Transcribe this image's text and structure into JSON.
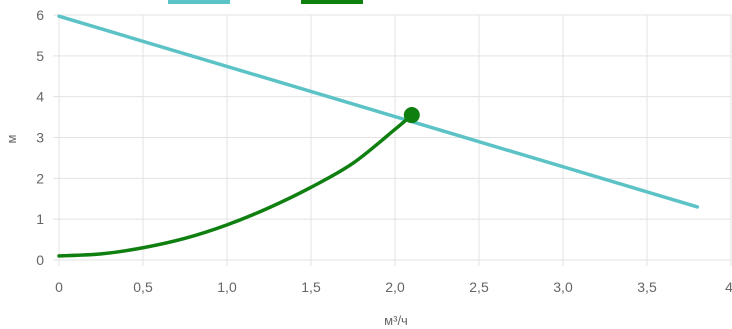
{
  "chart_data": {
    "type": "line",
    "xlabel": "м³/ч",
    "ylabel": "м",
    "xlim": [
      0,
      4
    ],
    "ylim": [
      0,
      6
    ],
    "x_ticks": [
      "0",
      "0,5",
      "1,0",
      "1,5",
      "2,0",
      "2,5",
      "3,0",
      "3,5",
      "4,"
    ],
    "y_ticks": [
      "0",
      "1",
      "2",
      "3",
      "4",
      "5",
      "6"
    ],
    "grid": true,
    "legend": {
      "position": "top-left",
      "entries": 2
    },
    "series": [
      {
        "color": "#5bc2c6",
        "points": [
          [
            0,
            5.97
          ],
          [
            3.8,
            1.3
          ]
        ]
      },
      {
        "color": "#0f7f10",
        "points": [
          [
            0,
            0.1
          ],
          [
            0.25,
            0.15
          ],
          [
            0.5,
            0.3
          ],
          [
            0.75,
            0.53
          ],
          [
            1.0,
            0.86
          ],
          [
            1.25,
            1.28
          ],
          [
            1.5,
            1.78
          ],
          [
            1.75,
            2.37
          ],
          [
            2.0,
            3.2
          ],
          [
            2.1,
            3.55
          ]
        ]
      }
    ],
    "intersection": {
      "x": 2.1,
      "y": 3.55,
      "color": "#0f7f10"
    }
  }
}
